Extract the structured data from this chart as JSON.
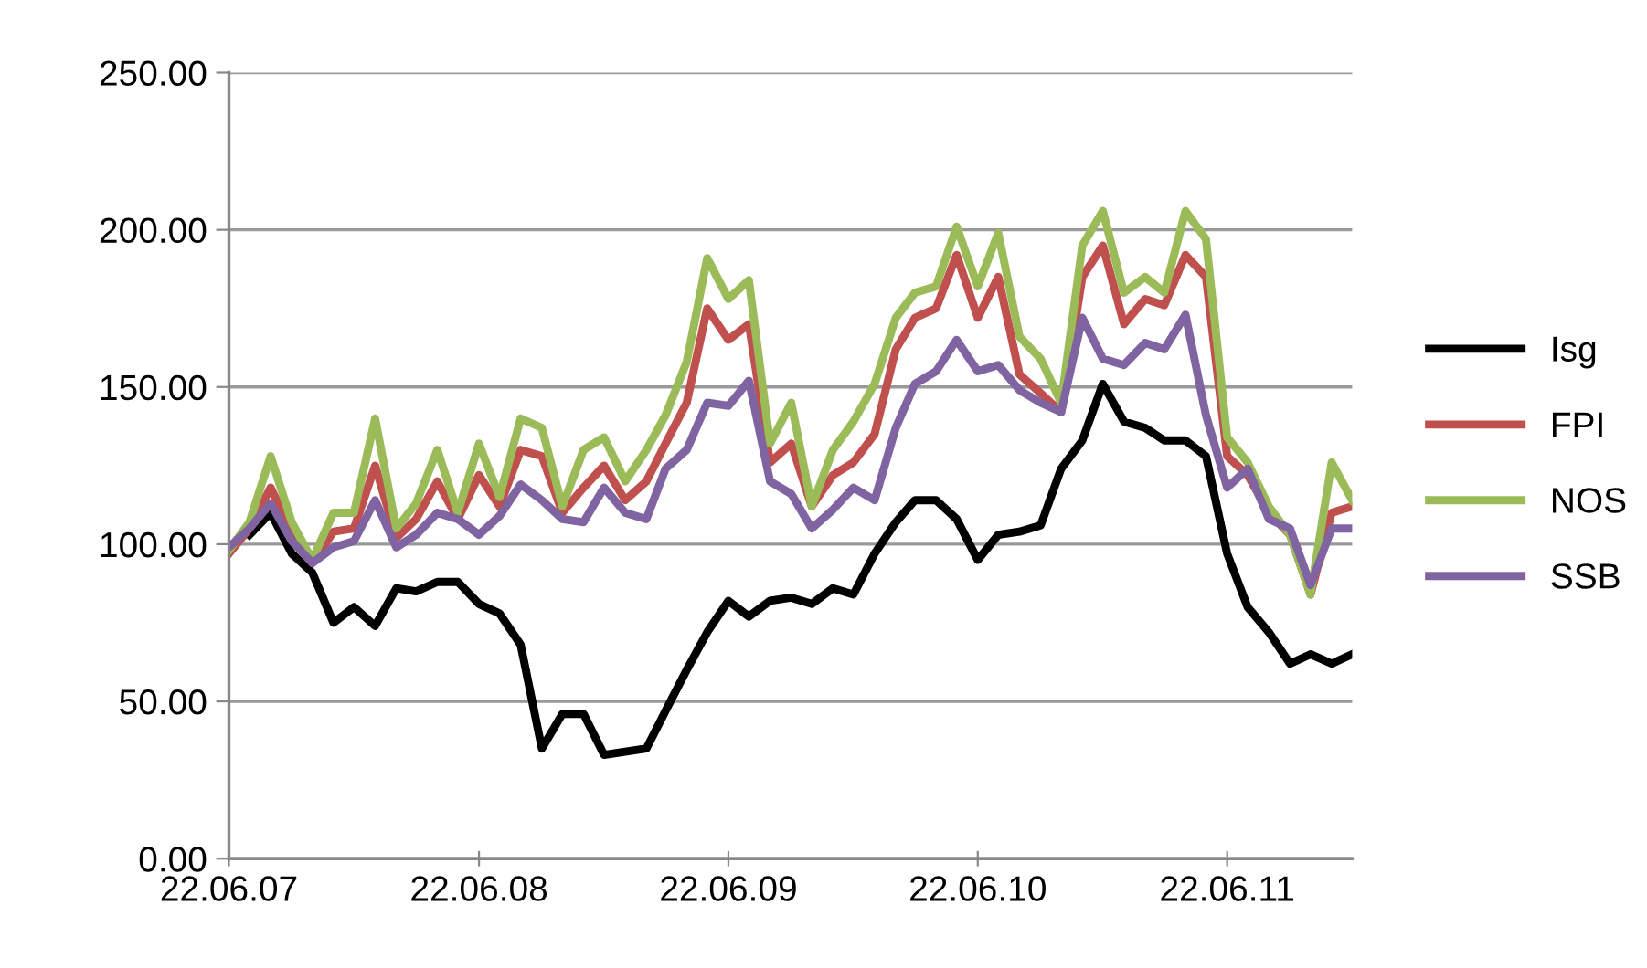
{
  "chart_data": {
    "type": "line",
    "x": [
      "2007-06-22",
      "2007-07-22",
      "2007-08-22",
      "2007-09-22",
      "2007-10-22",
      "2007-11-22",
      "2007-12-22",
      "2008-01-22",
      "2008-02-22",
      "2008-03-22",
      "2008-04-22",
      "2008-05-22",
      "2008-06-22",
      "2008-07-22",
      "2008-08-22",
      "2008-09-22",
      "2008-10-22",
      "2008-11-22",
      "2008-12-22",
      "2009-01-22",
      "2009-02-22",
      "2009-03-22",
      "2009-04-22",
      "2009-05-22",
      "2009-06-22",
      "2009-07-22",
      "2009-08-22",
      "2009-09-22",
      "2009-10-22",
      "2009-11-22",
      "2009-12-22",
      "2010-01-22",
      "2010-02-22",
      "2010-03-22",
      "2010-04-22",
      "2010-05-22",
      "2010-06-22",
      "2010-07-22",
      "2010-08-22",
      "2010-09-22",
      "2010-10-22",
      "2010-11-22",
      "2010-12-22",
      "2011-01-22",
      "2011-02-22",
      "2011-03-22",
      "2011-04-22",
      "2011-05-22",
      "2011-06-22",
      "2011-07-22",
      "2011-08-22",
      "2011-09-22",
      "2011-10-22",
      "2011-11-22",
      "2011-12-22"
    ],
    "series": [
      {
        "name": "Isg",
        "color": "#000000",
        "values": [
          null,
          103,
          110,
          97,
          91,
          75,
          80,
          74,
          86,
          85,
          88,
          88,
          81,
          78,
          68,
          35,
          46,
          46,
          33,
          34,
          35,
          47,
          60,
          72,
          82,
          77,
          82,
          83,
          81,
          86,
          84,
          97,
          107,
          114,
          114,
          108,
          95,
          103,
          104,
          106,
          124,
          133,
          151,
          139,
          137,
          133,
          133,
          128,
          97,
          80,
          72,
          62,
          65,
          62,
          65
        ]
      },
      {
        "name": "FPI",
        "color": "#c0504d",
        "values": [
          97,
          105,
          118,
          104,
          94,
          104,
          105,
          125,
          102,
          108,
          120,
          108,
          122,
          112,
          130,
          128,
          110,
          118,
          125,
          114,
          120,
          132,
          145,
          175,
          165,
          170,
          126,
          132,
          112,
          122,
          126,
          135,
          162,
          172,
          175,
          192,
          172,
          185,
          154,
          148,
          142,
          185,
          195,
          170,
          178,
          176,
          192,
          185,
          128,
          122,
          110,
          103,
          84,
          110,
          112
        ]
      },
      {
        "name": "NOS",
        "color": "#9bbb59",
        "values": [
          98,
          107,
          128,
          107,
          95,
          110,
          110,
          140,
          105,
          113,
          130,
          110,
          132,
          115,
          140,
          137,
          112,
          130,
          134,
          120,
          130,
          141,
          158,
          191,
          178,
          184,
          132,
          145,
          112,
          130,
          139,
          151,
          172,
          180,
          182,
          201,
          182,
          199,
          166,
          159,
          145,
          195,
          206,
          180,
          185,
          180,
          206,
          197,
          134,
          126,
          112,
          103,
          84,
          126,
          114
        ]
      },
      {
        "name": "SSB",
        "color": "#8064a2",
        "values": [
          99,
          105,
          113,
          101,
          94,
          99,
          101,
          114,
          99,
          103,
          110,
          108,
          103,
          109,
          119,
          114,
          108,
          107,
          118,
          110,
          108,
          124,
          130,
          145,
          144,
          152,
          120,
          116,
          105,
          111,
          118,
          114,
          137,
          151,
          155,
          165,
          155,
          157,
          149,
          145,
          142,
          172,
          159,
          157,
          164,
          162,
          173,
          141,
          118,
          124,
          108,
          105,
          87,
          105,
          105
        ]
      }
    ],
    "xlim": [
      "2007-06-22",
      "2011-12-22"
    ],
    "xticks": [
      {
        "value": "2007-06-22",
        "label": "22.06.07"
      },
      {
        "value": "2008-06-22",
        "label": "22.06.08"
      },
      {
        "value": "2009-06-22",
        "label": "22.06.09"
      },
      {
        "value": "2010-06-22",
        "label": "22.06.10"
      },
      {
        "value": "2011-06-22",
        "label": "22.06.11"
      }
    ],
    "ylim": [
      0,
      250
    ],
    "yticks": [
      {
        "value": 0,
        "label": "0.00"
      },
      {
        "value": 50,
        "label": "50.00"
      },
      {
        "value": 100,
        "label": "100.00"
      },
      {
        "value": 150,
        "label": "150.00"
      },
      {
        "value": 200,
        "label": "200.00"
      },
      {
        "value": 250,
        "label": "250.00"
      }
    ],
    "grid": "y",
    "legend": "right",
    "marker": "none",
    "line_style": "solid"
  }
}
